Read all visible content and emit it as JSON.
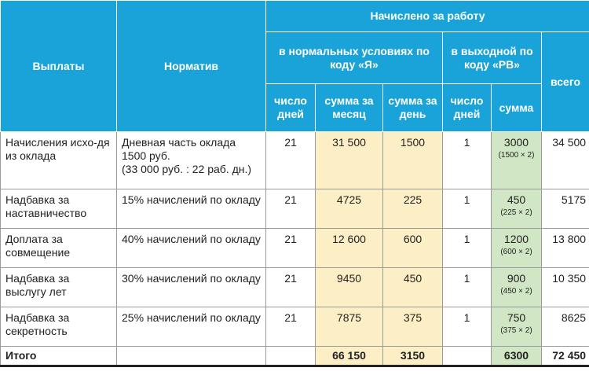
{
  "header": {
    "payments": "Выплаты",
    "norm": "Норматив",
    "accrued": "Начислено за работу",
    "normal_conditions": "в нормальных условиях по коду «Я»",
    "weekend": "в выходной по коду «РВ»",
    "total": "всего",
    "days_count": "число дней",
    "sum_month": "сумма за месяц",
    "sum_day": "сумма за день",
    "days_count2": "число дней",
    "sum": "сумма"
  },
  "rows": [
    {
      "payment": "Начисления исхо-дя из оклада",
      "norm": "Дневная часть оклада 1500 руб.",
      "norm_extra": "(33 000 руб. : 22 раб. дн.)",
      "days": "21",
      "sum_month": "31 500",
      "sum_day": "1500",
      "days2": "1",
      "sum2": "3000",
      "sum2_calc": "(1500 × 2)",
      "total": "34 500"
    },
    {
      "payment": "Надбавка за наставничество",
      "norm": "15% начислений по окладу",
      "days": "21",
      "sum_month": "4725",
      "sum_day": "225",
      "days2": "1",
      "sum2": "450",
      "sum2_calc": "(225 × 2)",
      "total": "5175"
    },
    {
      "payment": "Доплата за совмещение",
      "norm": "40% начислений по окладу",
      "days": "21",
      "sum_month": "12 600",
      "sum_day": "600",
      "days2": "1",
      "sum2": "1200",
      "sum2_calc": "(600 × 2)",
      "total": "13 800"
    },
    {
      "payment": "Надбавка за выслугу лет",
      "norm": "30% начислений по окладу",
      "days": "21",
      "sum_month": "9450",
      "sum_day": "450",
      "days2": "1",
      "sum2": "900",
      "sum2_calc": "(450 × 2)",
      "total": "10 350"
    },
    {
      "payment": "Надбавка за секретность",
      "norm": "25% начислений по окладу",
      "days": "21",
      "sum_month": "7875",
      "sum_day": "375",
      "days2": "1",
      "sum2": "750",
      "sum2_calc": "(375 × 2)",
      "total": "8625"
    }
  ],
  "totals": {
    "label": "Итого",
    "sum_month": "66 150",
    "sum_day": "3150",
    "sum2": "6300",
    "total": "72 450"
  },
  "colors": {
    "header_bg": "#1aa3d8",
    "yellow_fill": "#fcefc6",
    "green_fill": "#d1e6c4"
  }
}
